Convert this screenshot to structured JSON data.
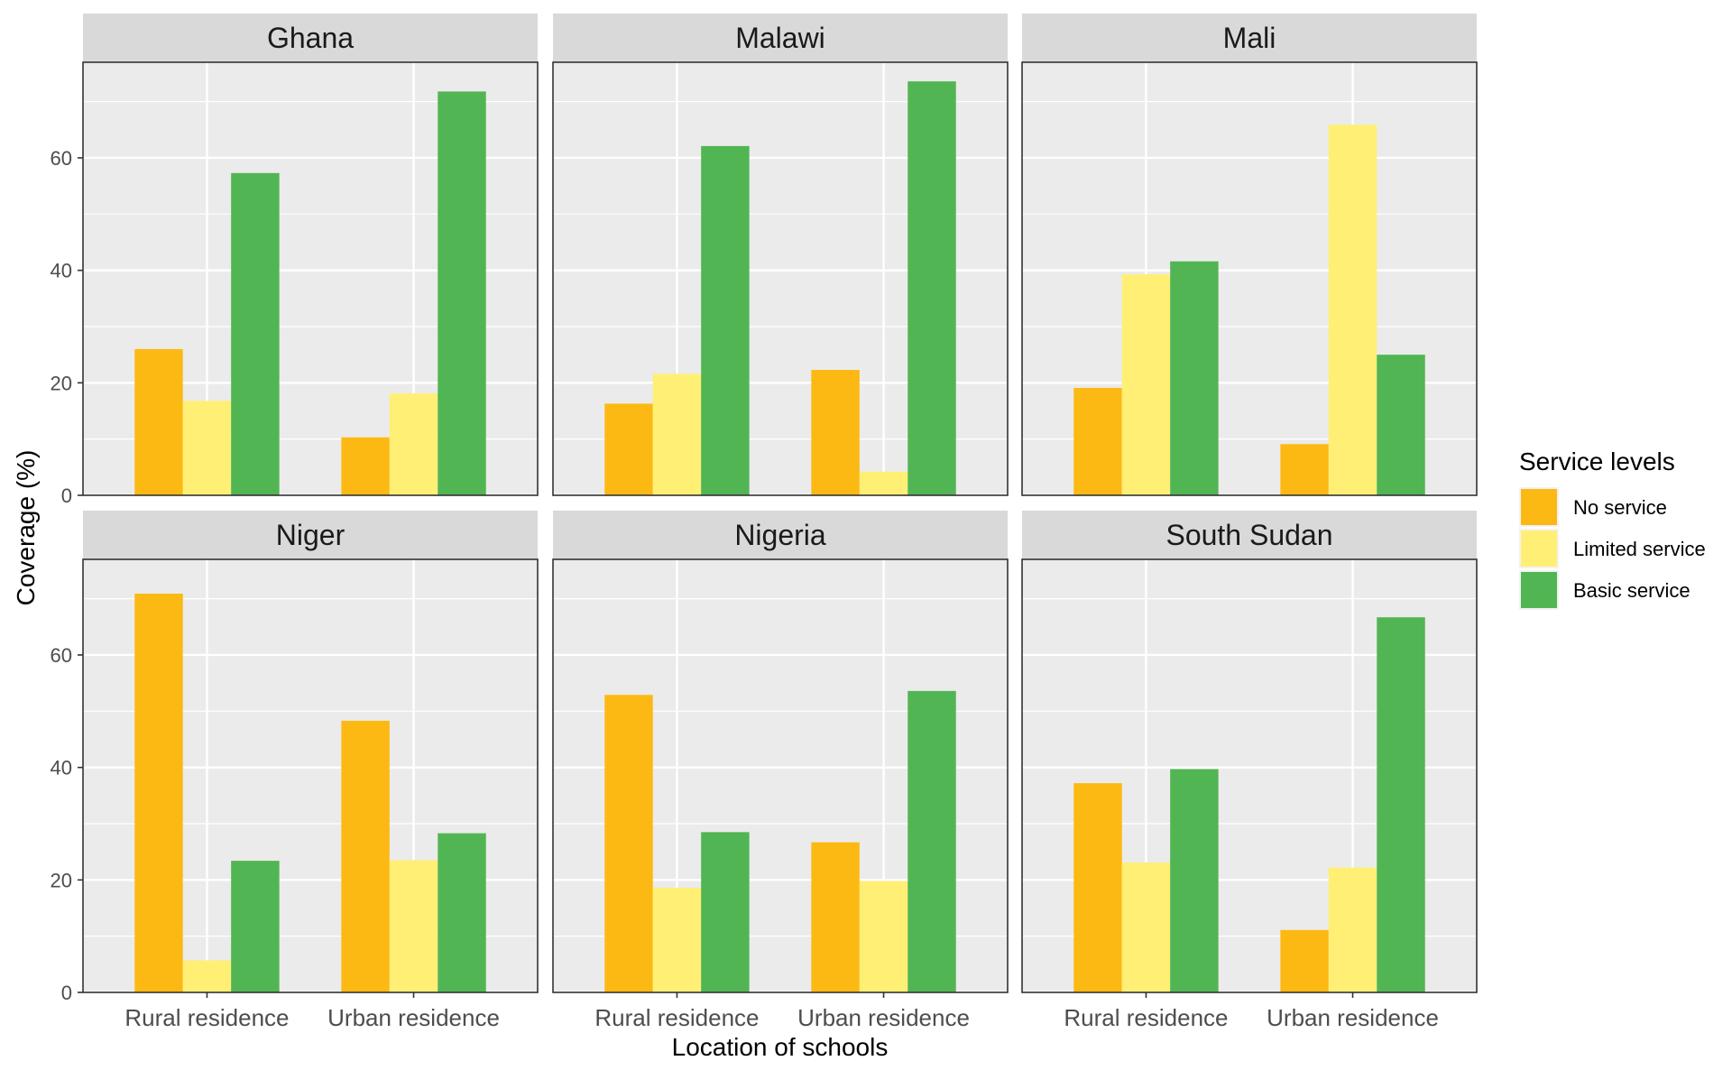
{
  "chart_data": {
    "type": "bar",
    "layout": "facet-grid",
    "xlabel": "Location of schools",
    "ylabel": "Coverage (%)",
    "ylim": [
      0,
      77
    ],
    "yticks": [
      0,
      20,
      40,
      60
    ],
    "grid": true,
    "legend": {
      "title": "Service levels",
      "placement": "right",
      "entries": [
        "No service",
        "Limited service",
        "Basic service"
      ]
    },
    "categories": [
      "Rural residence",
      "Urban residence"
    ],
    "colors": {
      "No service": "#FDB913",
      "Limited service": "#FFEF75",
      "Basic service": "#52B553"
    },
    "panel_bg": "#EBEBEB",
    "strip_bg": "#D9D9D9",
    "facets": [
      {
        "title": "Ghana",
        "series": [
          {
            "name": "No service",
            "values": [
              26,
              10.3
            ]
          },
          {
            "name": "Limited service",
            "values": [
              16.8,
              18.1
            ]
          },
          {
            "name": "Basic service",
            "values": [
              57.3,
              71.8
            ]
          }
        ]
      },
      {
        "title": "Malawi",
        "series": [
          {
            "name": "No service",
            "values": [
              16.3,
              22.3
            ]
          },
          {
            "name": "Limited service",
            "values": [
              21.6,
              4.2
            ]
          },
          {
            "name": "Basic service",
            "values": [
              62.1,
              73.6
            ]
          }
        ]
      },
      {
        "title": "Mali",
        "series": [
          {
            "name": "No service",
            "values": [
              19.1,
              9.1
            ]
          },
          {
            "name": "Limited service",
            "values": [
              39.3,
              65.9
            ]
          },
          {
            "name": "Basic service",
            "values": [
              41.6,
              25
            ]
          }
        ]
      },
      {
        "title": "Niger",
        "series": [
          {
            "name": "No service",
            "values": [
              70.9,
              48.3
            ]
          },
          {
            "name": "Limited service",
            "values": [
              5.7,
              23.5
            ]
          },
          {
            "name": "Basic service",
            "values": [
              23.4,
              28.3
            ]
          }
        ]
      },
      {
        "title": "Nigeria",
        "series": [
          {
            "name": "No service",
            "values": [
              52.9,
              26.7
            ]
          },
          {
            "name": "Limited service",
            "values": [
              18.6,
              19.8
            ]
          },
          {
            "name": "Basic service",
            "values": [
              28.5,
              53.6
            ]
          }
        ]
      },
      {
        "title": "South Sudan",
        "series": [
          {
            "name": "No service",
            "values": [
              37.2,
              11.1
            ]
          },
          {
            "name": "Limited service",
            "values": [
              23.1,
              22.2
            ]
          },
          {
            "name": "Basic service",
            "values": [
              39.7,
              66.7
            ]
          }
        ]
      }
    ]
  }
}
